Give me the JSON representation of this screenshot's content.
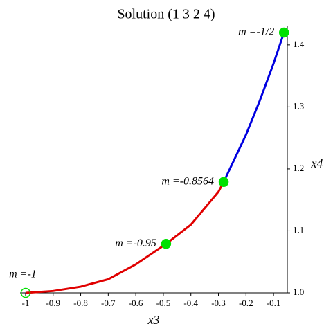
{
  "chart_data": {
    "type": "line",
    "title": "Solution (1 3 2 4)",
    "x_label": "x3",
    "y_label": "x4",
    "series": [
      {
        "color": "#e00000",
        "x": [
          -1,
          -0.9,
          -0.8,
          -0.7,
          -0.6,
          -0.49,
          -0.4,
          -0.3,
          -0.281
        ],
        "values": [
          1.0,
          1.003,
          1.01,
          1.022,
          1.046,
          1.079,
          1.11,
          1.163,
          1.179
        ]
      },
      {
        "color": "#0000e0",
        "x": [
          -0.281,
          -0.25,
          -0.2,
          -0.15,
          -0.1,
          -0.062
        ],
        "values": [
          1.179,
          1.208,
          1.255,
          1.31,
          1.37,
          1.42
        ]
      }
    ],
    "points": [
      {
        "label": "m =-1",
        "x": -1,
        "y": 1.0,
        "filled": false
      },
      {
        "label": "m =-0.95",
        "x": -0.49,
        "y": 1.079,
        "filled": true
      },
      {
        "label": "m =-0.8564",
        "x": -0.281,
        "y": 1.179,
        "filled": true
      },
      {
        "label": "m =-1/2",
        "x": -0.062,
        "y": 1.42,
        "filled": true
      }
    ],
    "point_color": "#00e000",
    "xlim": [
      -1.02,
      -0.05
    ],
    "ylim": [
      1.0,
      1.43
    ],
    "xticks": [
      -1,
      -0.9,
      -0.8,
      -0.7,
      -0.6,
      -0.5,
      -0.4,
      -0.3,
      -0.2,
      -0.1
    ],
    "yticks": [
      {
        "value": 1,
        "label": "1.0"
      },
      1.1,
      1.2,
      1.3,
      1.4
    ]
  }
}
